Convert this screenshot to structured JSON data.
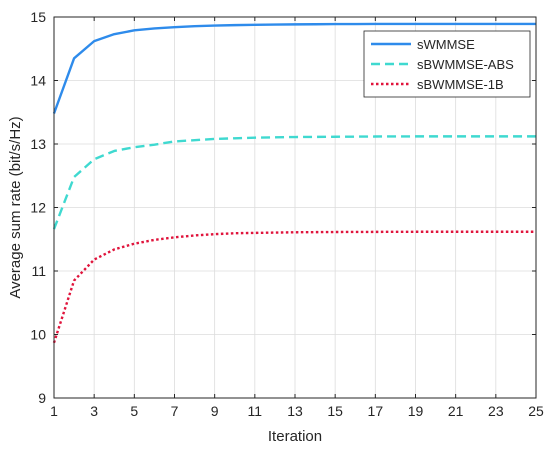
{
  "chart_data": {
    "type": "line",
    "title": "",
    "xlabel": "Iteration",
    "ylabel": "Average sum rate (bit/s/Hz)",
    "xlim": [
      1,
      25
    ],
    "ylim": [
      9,
      15
    ],
    "xticks": [
      1,
      3,
      5,
      7,
      9,
      11,
      13,
      15,
      17,
      19,
      21,
      23,
      25
    ],
    "yticks": [
      9,
      10,
      11,
      12,
      13,
      14,
      15
    ],
    "grid": true,
    "legend_position": "top-right",
    "x": [
      1,
      2,
      3,
      4,
      5,
      6,
      7,
      8,
      9,
      10,
      11,
      12,
      13,
      14,
      15,
      16,
      17,
      18,
      19,
      20,
      21,
      22,
      23,
      24,
      25
    ],
    "series": [
      {
        "name": "sWMMSE",
        "color": "#2E8BEB",
        "style": "solid",
        "values": [
          13.48,
          14.35,
          14.62,
          14.73,
          14.79,
          14.82,
          14.84,
          14.855,
          14.865,
          14.872,
          14.877,
          14.881,
          14.884,
          14.886,
          14.888,
          14.889,
          14.89,
          14.89,
          14.89,
          14.89,
          14.89,
          14.89,
          14.89,
          14.89,
          14.89
        ]
      },
      {
        "name": "sBWMMSE-ABS",
        "color": "#3FD9D0",
        "style": "dashed",
        "values": [
          11.66,
          12.48,
          12.76,
          12.89,
          12.95,
          12.99,
          13.04,
          13.06,
          13.08,
          13.09,
          13.1,
          13.105,
          13.11,
          13.112,
          13.114,
          13.116,
          13.118,
          13.119,
          13.12,
          13.12,
          13.12,
          13.12,
          13.12,
          13.12,
          13.12
        ]
      },
      {
        "name": "sBWMMSE-1B",
        "color": "#E0143C",
        "style": "dotted",
        "values": [
          9.87,
          10.85,
          11.18,
          11.34,
          11.43,
          11.49,
          11.53,
          11.56,
          11.58,
          11.595,
          11.6,
          11.605,
          11.61,
          11.612,
          11.614,
          11.615,
          11.616,
          11.617,
          11.618,
          11.618,
          11.618,
          11.618,
          11.618,
          11.618,
          11.618
        ]
      }
    ]
  }
}
